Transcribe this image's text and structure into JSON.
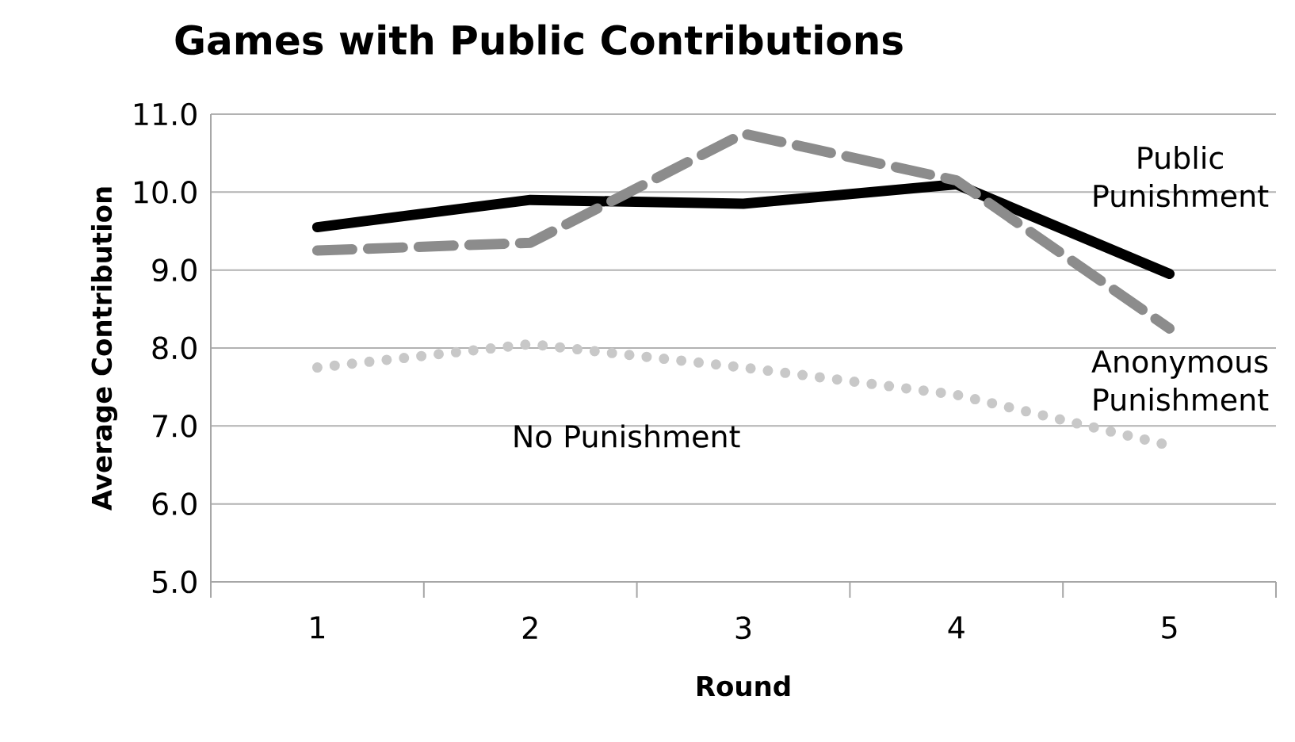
{
  "chart_data": {
    "type": "line",
    "title": "Games with Public Contributions",
    "xlabel": "Round",
    "ylabel": "Average Contribution",
    "categories": [
      "1",
      "2",
      "3",
      "4",
      "5"
    ],
    "series": [
      {
        "name": "Public Punishment",
        "color": "#000000",
        "line_style": "solid",
        "values": [
          9.55,
          9.9,
          9.85,
          10.1,
          8.95
        ]
      },
      {
        "name": "Anonymous Punishment",
        "color": "#8c8c8c",
        "line_style": "dashed",
        "values": [
          9.25,
          9.35,
          10.75,
          10.15,
          8.25
        ]
      },
      {
        "name": "No Punishment",
        "color": "#c8c8c8",
        "line_style": "dotted",
        "values": [
          7.75,
          8.05,
          7.75,
          7.4,
          6.75
        ]
      }
    ],
    "ylim": [
      5,
      11
    ],
    "yticks": [
      {
        "value": 5,
        "label": "5.0"
      },
      {
        "value": 6,
        "label": "6.0"
      },
      {
        "value": 7,
        "label": "7.0"
      },
      {
        "value": 8,
        "label": "8.0"
      },
      {
        "value": 9,
        "label": "9.0"
      },
      {
        "value": 10,
        "label": "10.0"
      },
      {
        "value": 11,
        "label": "11.0"
      }
    ],
    "grid": "y",
    "legend": false,
    "marker": "none"
  }
}
